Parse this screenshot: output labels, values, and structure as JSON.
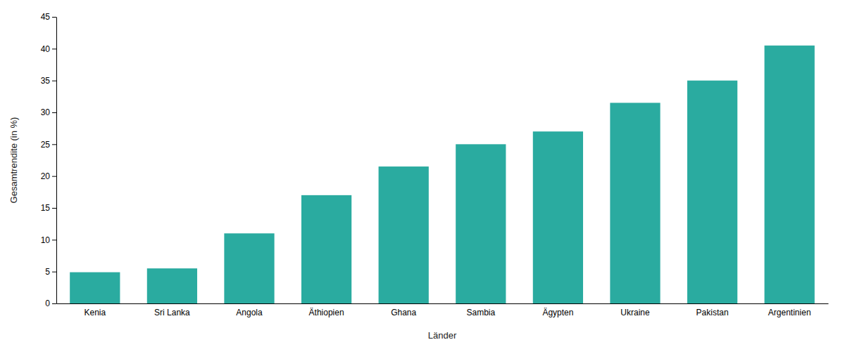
{
  "chart_data": {
    "type": "bar",
    "categories": [
      "Kenia",
      "Sri Lanka",
      "Angola",
      "Äthiopien",
      "Ghana",
      "Sambia",
      "Ägypten",
      "Ukraine",
      "Pakistan",
      "Argentinien"
    ],
    "values": [
      4.9,
      5.5,
      11.0,
      17.0,
      21.5,
      25.0,
      27.0,
      31.5,
      35.0,
      40.5
    ],
    "color": "#2aaba0",
    "xlabel": "Länder",
    "ylabel": "Gesamtrendite (in %)",
    "ylim": [
      0,
      45
    ],
    "yticks": [
      0,
      5,
      10,
      15,
      20,
      25,
      30,
      35,
      40,
      45
    ],
    "grid": false
  }
}
